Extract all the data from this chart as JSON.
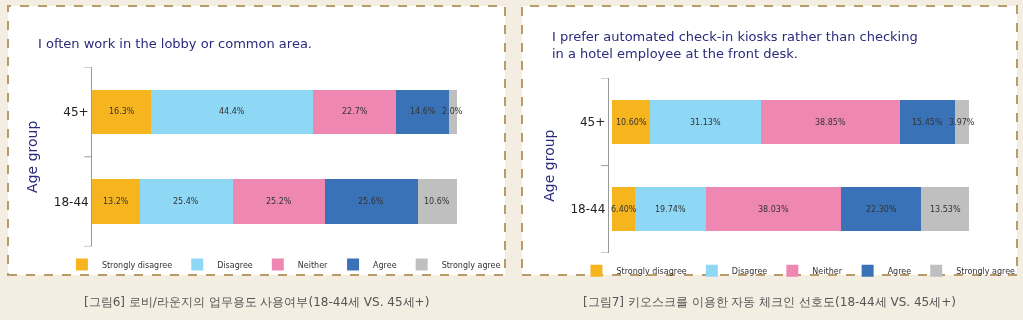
{
  "chart_data": [
    {
      "type": "bar",
      "orientation": "horizontal",
      "stacked": true,
      "title": "I often work in the lobby or common area.",
      "ylabel": "Age group",
      "categories": [
        "45+",
        "18-44"
      ],
      "legend": "bottom",
      "tick_labels": "y",
      "annotations": [
        "[그림6] 로비/라운지의 업무용도 사용여부(18-44세 VS. 45세+)"
      ],
      "series": [
        {
          "name": "Strongly disagree",
          "color": "#f6b51e",
          "values": [
            16.3,
            13.2
          ],
          "value_labels": [
            "16.3%",
            "13.2%"
          ]
        },
        {
          "name": "Disagree",
          "color": "#8fd8f5",
          "values": [
            44.4,
            25.4
          ],
          "value_labels": [
            "44.4%",
            "25.4%"
          ]
        },
        {
          "name": "Neither",
          "color": "#ef87b3",
          "values": [
            22.7,
            25.2
          ],
          "value_labels": [
            "22.7%",
            "25.2%"
          ]
        },
        {
          "name": "Agree",
          "color": "#3a72b8",
          "values": [
            14.6,
            25.6
          ],
          "value_labels": [
            "14.6%",
            "25.6%"
          ]
        },
        {
          "name": "Strongly agree",
          "color": "#bfbfbf",
          "values": [
            2.0,
            10.6
          ],
          "value_labels": [
            "2.0%",
            "10.6%"
          ]
        }
      ]
    },
    {
      "type": "bar",
      "orientation": "horizontal",
      "stacked": true,
      "title": "I prefer automated check-in kiosks rather than checking\nin a hotel employee at the front desk.",
      "ylabel": "Age group",
      "categories": [
        "45+",
        "18-44"
      ],
      "legend": "bottom",
      "tick_labels": "y",
      "annotations": [
        "[그림7] 키오스크를 이용한 자동 체크인 선호도(18-44세 VS. 45세+)"
      ],
      "series": [
        {
          "name": "Strongly disagree",
          "color": "#f6b51e",
          "values": [
            10.6,
            6.4
          ],
          "value_labels": [
            "10.60%",
            "6.40%"
          ]
        },
        {
          "name": "Disagree",
          "color": "#8fd8f5",
          "values": [
            31.13,
            19.74
          ],
          "value_labels": [
            "31.13%",
            "19.74%"
          ]
        },
        {
          "name": "Neither",
          "color": "#ef87b3",
          "values": [
            38.85,
            38.03
          ],
          "value_labels": [
            "38.85%",
            "38.03%"
          ]
        },
        {
          "name": "Agree",
          "color": "#3a72b8",
          "values": [
            15.45,
            22.3
          ],
          "value_labels": [
            "15.45%",
            "22.30%"
          ]
        },
        {
          "name": "Strongly agree",
          "color": "#bfbfbf",
          "values": [
            3.97,
            13.53
          ],
          "value_labels": [
            "3.97%",
            "13.53%"
          ]
        }
      ]
    }
  ]
}
